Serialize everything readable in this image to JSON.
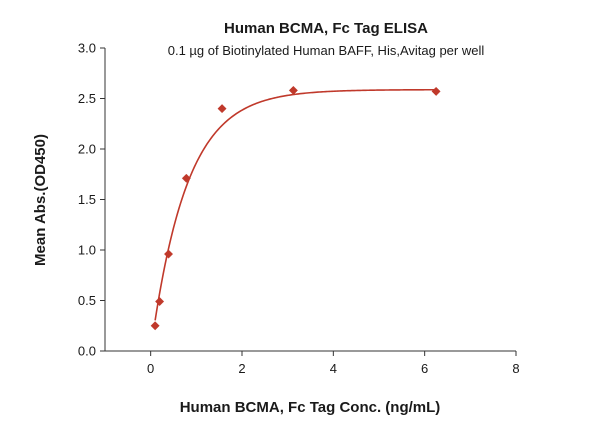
{
  "chart_data": {
    "type": "scatter",
    "title": "Human BCMA, Fc Tag ELISA",
    "subtitle": "0.1 µg of Biotinylated Human BAFF, His,Avitag per well",
    "xlabel": "Human BCMA, Fc Tag Conc. (ng/mL)",
    "ylabel": "Mean Abs.(OD450)",
    "xlim": [
      -1,
      8
    ],
    "ylim": [
      0,
      3.0
    ],
    "xticks": [
      0,
      2,
      4,
      6,
      8
    ],
    "yticks": [
      0.0,
      0.5,
      1.0,
      1.5,
      2.0,
      2.5,
      3.0
    ],
    "xtick_labels": [
      "0",
      "2",
      "4",
      "6",
      "8"
    ],
    "ytick_labels": [
      "0.0",
      "0.5",
      "1.0",
      "1.5",
      "2.0",
      "2.5",
      "3.0"
    ],
    "grid": false,
    "color": "#c0392b",
    "marker": "diamond",
    "fit_curve": true,
    "series": [
      {
        "x": [
          0.098,
          0.195,
          0.391,
          0.781,
          1.563,
          3.125,
          6.25
        ],
        "y": [
          0.25,
          0.49,
          0.96,
          1.71,
          2.4,
          2.58,
          2.57
        ]
      }
    ]
  }
}
